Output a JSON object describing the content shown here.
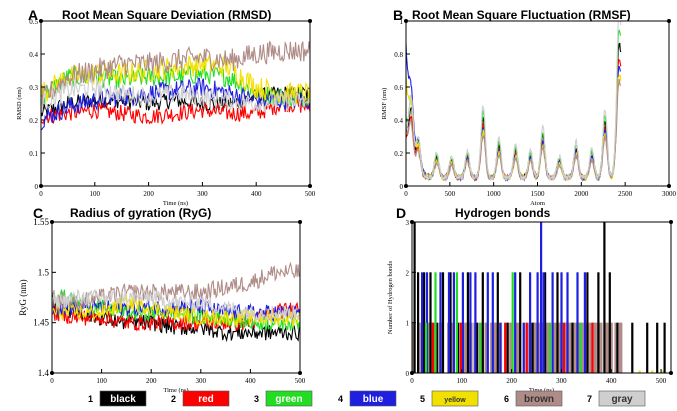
{
  "colors": {
    "black": "#000000",
    "red": "#ff0000",
    "green": "#22dd22",
    "blue": "#1f1fe0",
    "yellow": "#f2e000",
    "brown": "#b08c88",
    "gray": "#cfcfcf"
  },
  "chart_data": [
    {
      "panel": "A",
      "type": "line",
      "title": "Root Mean Square Deviation (RMSD)",
      "xlabel": "Time (ns)",
      "ylabel": "RMSD (nm)",
      "xlim": [
        0,
        500
      ],
      "ylim": [
        0,
        0.5
      ],
      "xticks": [
        "0",
        "100",
        "200",
        "300",
        "400",
        "500"
      ],
      "yticks": [
        "0",
        "0.1",
        "0.2",
        "0.3",
        "0.4",
        "0.5"
      ],
      "series": [
        {
          "name": "black",
          "color": "black",
          "base": [
            0.22,
            0.25,
            0.26,
            0.26,
            0.25,
            0.26,
            0.25,
            0.25,
            0.27,
            0.28,
            0.28
          ],
          "noise": 0.025
        },
        {
          "name": "red",
          "color": "red",
          "base": [
            0.21,
            0.22,
            0.23,
            0.22,
            0.21,
            0.22,
            0.23,
            0.22,
            0.22,
            0.25,
            0.24
          ],
          "noise": 0.025
        },
        {
          "name": "green",
          "color": "green",
          "base": [
            0.27,
            0.33,
            0.33,
            0.32,
            0.33,
            0.33,
            0.34,
            0.33,
            0.28,
            0.27,
            0.27
          ],
          "noise": 0.03
        },
        {
          "name": "blue",
          "color": "blue",
          "base": [
            0.2,
            0.24,
            0.26,
            0.27,
            0.28,
            0.29,
            0.3,
            0.28,
            0.26,
            0.26,
            0.26
          ],
          "noise": 0.03
        },
        {
          "name": "yellow",
          "color": "yellow",
          "base": [
            0.28,
            0.33,
            0.34,
            0.34,
            0.35,
            0.36,
            0.37,
            0.36,
            0.3,
            0.28,
            0.28
          ],
          "noise": 0.035
        },
        {
          "name": "brown",
          "color": "brown",
          "base": [
            0.26,
            0.33,
            0.35,
            0.37,
            0.37,
            0.38,
            0.39,
            0.38,
            0.4,
            0.41,
            0.41
          ],
          "noise": 0.035
        },
        {
          "name": "gray",
          "color": "gray",
          "base": [
            0.25,
            0.29,
            0.3,
            0.28,
            0.27,
            0.28,
            0.27,
            0.26,
            0.25,
            0.26,
            0.25
          ],
          "noise": 0.03
        }
      ]
    },
    {
      "panel": "B",
      "type": "line",
      "title": "Root Mean Square Fluctuation (RMSF)",
      "xlabel": "Atom",
      "ylabel": "RMSF (nm)",
      "xlim": [
        0,
        3000
      ],
      "ylim": [
        0,
        1
      ],
      "xticks": [
        "0",
        "500",
        "1000",
        "1500",
        "2000",
        "2500",
        "3000"
      ],
      "yticks": [
        "0",
        "0.2",
        "0.4",
        "0.6",
        "0.8",
        "1"
      ],
      "peaks": [
        [
          60,
          0.35
        ],
        [
          140,
          0.2
        ],
        [
          350,
          0.14
        ],
        [
          520,
          0.12
        ],
        [
          700,
          0.15
        ],
        [
          880,
          0.4
        ],
        [
          1060,
          0.22
        ],
        [
          1250,
          0.18
        ],
        [
          1420,
          0.15
        ],
        [
          1560,
          0.28
        ],
        [
          1750,
          0.12
        ],
        [
          1940,
          0.2
        ],
        [
          2120,
          0.16
        ],
        [
          2270,
          0.38
        ],
        [
          2420,
          0.62
        ]
      ],
      "series": [
        {
          "name": "black",
          "color": "black",
          "scale": 0.9,
          "start": 0.3
        },
        {
          "name": "red",
          "color": "red",
          "scale": 0.8,
          "start": 0.25
        },
        {
          "name": "green",
          "color": "green",
          "scale": 1.0,
          "start": 0.35
        },
        {
          "name": "blue",
          "color": "blue",
          "scale": 0.75,
          "start": 0.8
        },
        {
          "name": "yellow",
          "color": "yellow",
          "scale": 0.7,
          "start": 0.6
        },
        {
          "name": "brown",
          "color": "brown",
          "scale": 0.65,
          "start": 0.3
        },
        {
          "name": "gray",
          "color": "gray",
          "scale": 1.1,
          "start": 0.3
        }
      ]
    },
    {
      "panel": "C",
      "type": "line",
      "title": "Radius of gyration (RyG)",
      "xlabel": "Time (ns)",
      "ylabel": "RyG (nm)",
      "xlim": [
        0,
        500
      ],
      "ylim": [
        1.4,
        1.55
      ],
      "xticks": [
        "0",
        "100",
        "200",
        "300",
        "400",
        "500"
      ],
      "yticks": [
        "1.4",
        "1.45",
        "1.5",
        "1.55"
      ],
      "series": [
        {
          "name": "black",
          "color": "black",
          "base": [
            1.47,
            1.46,
            1.455,
            1.45,
            1.45,
            1.445,
            1.445,
            1.44,
            1.44,
            1.44,
            1.44
          ],
          "noise": 0.008
        },
        {
          "name": "red",
          "color": "red",
          "base": [
            1.46,
            1.455,
            1.455,
            1.45,
            1.45,
            1.45,
            1.45,
            1.45,
            1.45,
            1.46,
            1.465
          ],
          "noise": 0.008
        },
        {
          "name": "green",
          "color": "green",
          "base": [
            1.48,
            1.47,
            1.465,
            1.46,
            1.46,
            1.46,
            1.455,
            1.455,
            1.45,
            1.45,
            1.45
          ],
          "noise": 0.008
        },
        {
          "name": "blue",
          "color": "blue",
          "base": [
            1.465,
            1.465,
            1.465,
            1.465,
            1.465,
            1.465,
            1.465,
            1.46,
            1.46,
            1.46,
            1.46
          ],
          "noise": 0.008
        },
        {
          "name": "yellow",
          "color": "yellow",
          "base": [
            1.46,
            1.46,
            1.46,
            1.47,
            1.465,
            1.46,
            1.455,
            1.455,
            1.455,
            1.455,
            1.455
          ],
          "noise": 0.008
        },
        {
          "name": "brown",
          "color": "brown",
          "base": [
            1.475,
            1.47,
            1.475,
            1.48,
            1.48,
            1.48,
            1.48,
            1.485,
            1.49,
            1.5,
            1.5
          ],
          "noise": 0.009
        },
        {
          "name": "gray",
          "color": "gray",
          "base": [
            1.47,
            1.475,
            1.475,
            1.475,
            1.475,
            1.47,
            1.47,
            1.465,
            1.46,
            1.46,
            1.46
          ],
          "noise": 0.008
        }
      ]
    },
    {
      "panel": "D",
      "type": "bar",
      "title": "Hydrogen bonds",
      "xlabel": "Time (ns)",
      "ylabel": "Number of Hydrogen bonds",
      "xlim": [
        0,
        520
      ],
      "ylim": [
        0,
        3
      ],
      "xticks": [
        "0",
        "100",
        "200",
        "300",
        "400",
        "500"
      ],
      "yticks": [
        "0",
        "1",
        "2",
        "3"
      ],
      "series": [
        {
          "name": "brown",
          "color": "brown",
          "value": 1,
          "range": [
            0,
            420
          ],
          "density": 0.6
        },
        {
          "name": "black",
          "color": "black",
          "spikes": [
            [
              3,
              3
            ],
            [
              10,
              2
            ],
            [
              22,
              2
            ],
            [
              35,
              2
            ],
            [
              48,
              1
            ],
            [
              60,
              2
            ],
            [
              75,
              2
            ],
            [
              90,
              1
            ],
            [
              110,
              2
            ],
            [
              128,
              1
            ],
            [
              140,
              2
            ],
            [
              170,
              2
            ],
            [
              190,
              1
            ],
            [
              215,
              2
            ],
            [
              240,
              1
            ],
            [
              265,
              2
            ],
            [
              290,
              2
            ],
            [
              320,
              1
            ],
            [
              350,
              2
            ],
            [
              372,
              2
            ],
            [
              384,
              3
            ],
            [
              395,
              2
            ],
            [
              410,
              1
            ],
            [
              440,
              1
            ],
            [
              470,
              1
            ],
            [
              490,
              1
            ],
            [
              505,
              1
            ]
          ]
        },
        {
          "name": "blue",
          "color": "blue",
          "spikes": [
            [
              18,
              2
            ],
            [
              28,
              2
            ],
            [
              55,
              2
            ],
            [
              72,
              2
            ],
            [
              82,
              2
            ],
            [
              100,
              2
            ],
            [
              115,
              2
            ],
            [
              125,
              2
            ],
            [
              150,
              2
            ],
            [
              160,
              2
            ],
            [
              175,
              1
            ],
            [
              205,
              2
            ],
            [
              222,
              1
            ],
            [
              235,
              2
            ],
            [
              250,
              2
            ],
            [
              257,
              3
            ],
            [
              262,
              2
            ],
            [
              280,
              2
            ],
            [
              298,
              2
            ],
            [
              310,
              2
            ],
            [
              330,
              2
            ],
            [
              345,
              2
            ]
          ]
        },
        {
          "name": "green",
          "color": "green",
          "spikes": [
            [
              26,
              1
            ],
            [
              45,
              2
            ],
            [
              88,
              2
            ],
            [
              135,
              1
            ],
            [
              200,
              2
            ],
            [
              275,
              1
            ],
            [
              336,
              1
            ]
          ]
        },
        {
          "name": "red",
          "color": "red",
          "spikes": [
            [
              40,
              1
            ],
            [
              96,
              1
            ],
            [
              185,
              1
            ],
            [
              228,
              1
            ],
            [
              303,
              1
            ],
            [
              360,
              1
            ]
          ]
        },
        {
          "name": "yellow",
          "color": "yellow",
          "spikes": [
            [
              455,
              0.05
            ],
            [
              480,
              0.05
            ],
            [
              500,
              0.05
            ]
          ]
        }
      ]
    }
  ],
  "legend": [
    {
      "num": "1",
      "label": "black",
      "color": "black"
    },
    {
      "num": "2",
      "label": "red",
      "color": "red"
    },
    {
      "num": "3",
      "label": "green",
      "color": "green"
    },
    {
      "num": "4",
      "label": "blue",
      "color": "blue"
    },
    {
      "num": "5",
      "label": "yellow",
      "color": "yellow"
    },
    {
      "num": "6",
      "label": "brown",
      "color": "brown"
    },
    {
      "num": "7",
      "label": "gray",
      "color": "gray"
    }
  ]
}
